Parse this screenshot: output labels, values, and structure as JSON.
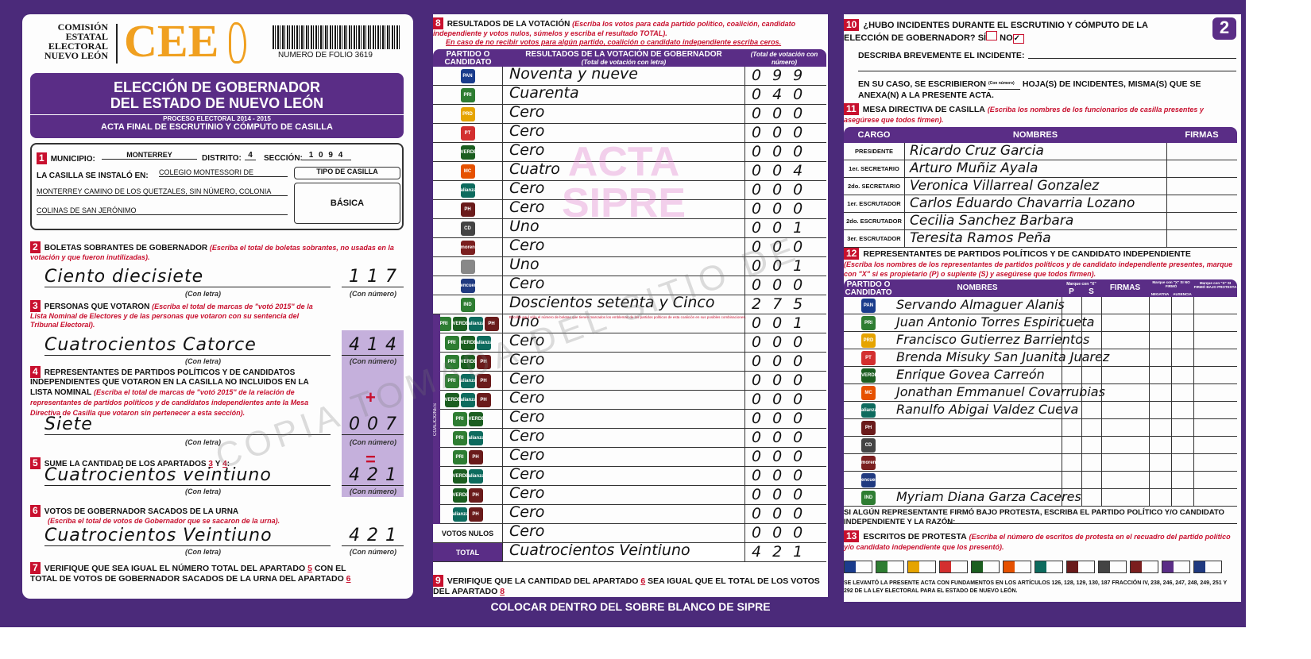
{
  "header": {
    "org": [
      "COMISIÓN",
      "ESTATAL",
      "ELECTORAL",
      "NUEVO LEÓN"
    ],
    "logo_text": "CEE",
    "folio": "NUMERO DE FOLIO 3619",
    "page_number": "2",
    "title_line1": "ELECCIÓN DE GOBERNADOR",
    "title_line2": "DEL ESTADO DE NUEVO LEÓN",
    "process": "PROCESO ELECTORAL 2014 - 2015",
    "subtitle": "ACTA FINAL DE ESCRUTINIO Y CÓMPUTO DE CASILLA"
  },
  "s1": {
    "num": "1",
    "municipio_label": "MUNICIPIO:",
    "municipio": "MONTERREY",
    "distrito_label": "DISTRITO:",
    "distrito": "4",
    "seccion_label": "SECCIÓN:",
    "seccion": "1 0 9 4",
    "installed_label": "LA CASILLA SE INSTALÓ EN:",
    "address1": "COLEGIO MONTESSORI DE",
    "address2": "MONTERREY CAMINO DE LOS QUETZALES, SIN NÚMERO, COLONIA",
    "address3": "COLINAS DE SAN JERÓNIMO",
    "tipo_label": "TIPO DE CASILLA",
    "tipo": "BÁSICA"
  },
  "labels": {
    "con_letra": "(Con letra)",
    "con_numero": "(Con número)",
    "plus": "+",
    "equals": "="
  },
  "s2": {
    "num": "2",
    "title": "BOLETAS SOBRANTES DE GOBERNADOR",
    "note": "(Escriba el total de boletas sobrantes, no usadas en la votación y que fueron inutilizadas).",
    "letra": "Ciento diecisiete",
    "numero": "117"
  },
  "s3": {
    "num": "3",
    "title": "PERSONAS QUE VOTARON",
    "note": "(Escriba el total de marcas de \"votó 2015\" de la Lista Nominal de Electores y de las personas que votaron con su sentencia del Tribunal Electoral).",
    "letra": "Cuatrocientos Catorce",
    "numero": "414"
  },
  "s4": {
    "num": "4",
    "title": "REPRESENTANTES DE PARTIDOS POLÍTICOS Y DE CANDIDATOS INDEPENDIENTES QUE VOTARON EN LA CASILLA NO INCLUIDOS EN LA LISTA NOMINAL",
    "note": "(Escriba el total de marcas de \"votó 2015\" de la relación de representantes de partidos políticos y de candidatos independientes ante la Mesa Directiva de Casilla que votaron sin pertenecer a esta sección).",
    "letra": "Siete",
    "numero": "007"
  },
  "s5": {
    "num": "5",
    "title": "SUME LA CANTIDAD DE LOS APARTADOS",
    "a": "3",
    "y": "Y",
    "b": "4",
    "letra": "Cuatrocientos veintiuno",
    "numero": "421"
  },
  "s6": {
    "num": "6",
    "title": "VOTOS DE GOBERNADOR SACADOS DE LA URNA",
    "note": "(Escriba el total de votos de Gobernador que se sacaron de la urna).",
    "letra": "Cuatrocientos Veintiuno",
    "numero": "421"
  },
  "s7": {
    "num": "7",
    "text1": "VERIFIQUE QUE SEA IGUAL EL NÚMERO TOTAL DEL APARTADO",
    "a": "5",
    "text2": "CON EL TOTAL DE VOTOS DE GOBERNADOR SACADOS DE LA URNA DEL APARTADO",
    "b": "6"
  },
  "s8": {
    "num": "8",
    "title": "RESULTADOS DE LA VOTACIÓN",
    "note1": "(Escriba los votos para cada partido político, coalición, candidato independiente y votos nulos, súmelos y escriba el resultado TOTAL).",
    "note2": "En caso de no recibir votos para algún partido, coalición o candidato independiente escriba ceros.",
    "col_party": "PARTIDO O CANDIDATO",
    "col_result": "RESULTADOS DE LA VOTACIÓN DE GOBERNADOR",
    "col_result_sub": "(Total de votación con letra)",
    "col_num": "(Total de votación con número)",
    "coalition_note": "Escriba aquí sólo el número de boletas que tienen marcados los emblemas de los partidos políticos de esta coalición en sus posibles combinaciones.",
    "coalitions_label": "COALICIONES",
    "watermark": "ACTA SIPRE",
    "rows": [
      {
        "party": "PAN",
        "color": "#1a3c8c",
        "letra": "Noventa y nueve",
        "numero": "099"
      },
      {
        "party": "PRI",
        "color": "#2e7d32",
        "letra": "Cuarenta",
        "numero": "040"
      },
      {
        "party": "PRD",
        "color": "#e6a400",
        "letra": "Cero",
        "numero": "000"
      },
      {
        "party": "PT",
        "color": "#d32f2f",
        "letra": "Cero",
        "numero": "000"
      },
      {
        "party": "VERDE",
        "color": "#1b5e20",
        "letra": "Cero",
        "numero": "000"
      },
      {
        "party": "MC",
        "color": "#e65100",
        "letra": "Cuatro",
        "numero": "004"
      },
      {
        "party": "alianza",
        "color": "#0d6b5e",
        "letra": "Cero",
        "numero": "000"
      },
      {
        "party": "PH",
        "color": "#6a1b1b",
        "letra": "Cero",
        "numero": "000"
      },
      {
        "party": "CD",
        "color": "#444",
        "letra": "Uno",
        "numero": "001"
      },
      {
        "party": "morena",
        "color": "#7b1f1f",
        "letra": "Cero",
        "numero": "000"
      },
      {
        "party": "",
        "color": "#888",
        "letra": "Uno",
        "numero": "001"
      },
      {
        "party": "encuentro",
        "color": "#203a80",
        "letra": "Cero",
        "numero": "000"
      },
      {
        "party": "IND",
        "color": "#2e7d32",
        "letra": "Doscientos setenta y Cinco",
        "numero": "275"
      }
    ],
    "coalition_rows": [
      {
        "parties": [
          "PRI",
          "VERDE",
          "alianza",
          "PH"
        ],
        "letra": "Uno",
        "numero": "001"
      },
      {
        "parties": [
          "PRI",
          "VERDE",
          "alianza"
        ],
        "letra": "Cero",
        "numero": "000"
      },
      {
        "parties": [
          "PRI",
          "VERDE",
          "PH"
        ],
        "letra": "Cero",
        "numero": "000"
      },
      {
        "parties": [
          "PRI",
          "alianza",
          "PH"
        ],
        "letra": "Cero",
        "numero": "000"
      },
      {
        "parties": [
          "VERDE",
          "alianza",
          "PH"
        ],
        "letra": "Cero",
        "numero": "000"
      },
      {
        "parties": [
          "PRI",
          "VERDE"
        ],
        "letra": "Cero",
        "numero": "000"
      },
      {
        "parties": [
          "PRI",
          "alianza"
        ],
        "letra": "Cero",
        "numero": "000"
      },
      {
        "parties": [
          "PRI",
          "PH"
        ],
        "letra": "Cero",
        "numero": "000"
      },
      {
        "parties": [
          "VERDE",
          "alianza"
        ],
        "letra": "Cero",
        "numero": "000"
      },
      {
        "parties": [
          "VERDE",
          "PH"
        ],
        "letra": "Cero",
        "numero": "000"
      },
      {
        "parties": [
          "alianza",
          "PH"
        ],
        "letra": "Cero",
        "numero": "000"
      }
    ],
    "nulos_label": "VOTOS NULOS",
    "nulos_letra": "Cero",
    "nulos_numero": "000",
    "total_label": "TOTAL",
    "total_letra": "Cuatrocientos Veintiuno",
    "total_numero": "421"
  },
  "s9": {
    "num": "9",
    "text1": "VERIFIQUE QUE LA CANTIDAD DEL APARTADO",
    "a": "6",
    "text2": "SEA IGUAL QUE EL TOTAL DE LOS VOTOS DEL APARTADO",
    "b": "8"
  },
  "footer_banner": "COLOCAR DENTRO DEL SOBRE BLANCO DE SIPRE",
  "s10": {
    "num": "10",
    "question": "¿HUBO INCIDENTES DURANTE EL ESCRUTINIO Y CÓMPUTO DE LA ELECCIÓN DE GOBERNADOR?",
    "si": "SÍ",
    "no": "NO",
    "no_checked": true,
    "describe": "DESCRIBA BREVEMENTE EL INCIDENTE:",
    "sheets1": "EN SU CASO, SE ESCRIBIERON",
    "sheets_sub": "(Con número)",
    "sheets2": "HOJA(S) DE INCIDENTES, MISMA(S) QUE SE ANEXA(N) A LA PRESENTE ACTA."
  },
  "s11": {
    "num": "11",
    "title": "MESA DIRECTIVA DE CASILLA",
    "note": "(Escriba los nombres de los funcionarios de casilla presentes y asegúrese que todos firmen).",
    "col_cargo": "CARGO",
    "col_nombres": "NOMBRES",
    "col_firmas": "FIRMAS",
    "rows": [
      {
        "cargo": "PRESIDENTE",
        "nombre": "Ricardo Cruz Garcia"
      },
      {
        "cargo": "1er. SECRETARIO",
        "nombre": "Arturo Muñiz Ayala"
      },
      {
        "cargo": "2do. SECRETARIO",
        "nombre": "Veronica Villarreal Gonzalez"
      },
      {
        "cargo": "1er. ESCRUTADOR",
        "nombre": "Carlos Eduardo Chavarria Lozano"
      },
      {
        "cargo": "2do. ESCRUTADOR",
        "nombre": "Cecilia Sanchez Barbara"
      },
      {
        "cargo": "3er. ESCRUTADOR",
        "nombre": "Teresita Ramos Peña"
      }
    ]
  },
  "s12": {
    "num": "12",
    "title": "REPRESENTANTES DE PARTIDOS POLÍTICOS Y DE CANDIDATO INDEPENDIENTE",
    "note": "(Escriba los nombres de los representantes de partidos políticos y de candidato independiente presentes, marque con \"X\" si es propietario (P) o suplente (S) y asegúrese que todos firmen).",
    "col_party": "PARTIDO O CANDIDATO",
    "col_nombres": "NOMBRES",
    "col_marque": "Marque con \"X\"",
    "col_p": "P",
    "col_s": "S",
    "col_firmas": "FIRMAS",
    "col_nofirmo": "Marque con \"X\" SI NO FIRMÓ",
    "col_negativa": "NEGATIVA",
    "col_ausencia": "AUSENCIA",
    "col_protesta": "Marque con \"X\" SI FIRMÓ BAJO PROTESTA",
    "rows": [
      {
        "party": "PAN",
        "color": "#1a3c8c",
        "nombre": "Servando Almaguer Alanis"
      },
      {
        "party": "PRI",
        "color": "#2e7d32",
        "nombre": "Juan Antonio Torres Espiricueta"
      },
      {
        "party": "PRD",
        "color": "#e6a400",
        "nombre": "Francisco Gutierrez Barrientos"
      },
      {
        "party": "PT",
        "color": "#d32f2f",
        "nombre": "Brenda Misuky San Juanita Juarez"
      },
      {
        "party": "VERDE",
        "color": "#1b5e20",
        "nombre": "Enrique Govea Carreón"
      },
      {
        "party": "MC",
        "color": "#e65100",
        "nombre": "Jonathan Emmanuel Covarrubias"
      },
      {
        "party": "alianza",
        "color": "#0d6b5e",
        "nombre": "Ranulfo Abigai Valdez Cueva"
      },
      {
        "party": "PH",
        "color": "#6a1b1b",
        "nombre": ""
      },
      {
        "party": "CD",
        "color": "#444",
        "nombre": ""
      },
      {
        "party": "morena",
        "color": "#7b1f1f",
        "nombre": ""
      },
      {
        "party": "encuentro",
        "color": "#203a80",
        "nombre": ""
      },
      {
        "party": "IND",
        "color": "#2e7d32",
        "nombre": "Myriam Diana Garza Caceres"
      }
    ],
    "protest_q": "SI ALGÚN REPRESENTANTE FIRMÓ BAJO PROTESTA, ESCRIBA EL PARTIDO POLÍTICO Y/O CANDIDATO INDEPENDIENTE Y LA RAZÓN:"
  },
  "s13": {
    "num": "13",
    "title": "ESCRITOS DE PROTESTA",
    "note": "(Escriba el número de escritos de protesta en el recuadro del partido político y/o candidato independiente que los presentó).",
    "boxes": [
      {
        "color": "#1a3c8c"
      },
      {
        "color": "#2e7d32"
      },
      {
        "color": "#e6a400"
      },
      {
        "color": "#d32f2f"
      },
      {
        "color": "#1b5e20"
      },
      {
        "color": "#e65100"
      },
      {
        "color": "#0d6b5e"
      },
      {
        "color": "#6a1b1b"
      },
      {
        "color": "#444"
      },
      {
        "color": "#7b1f1f"
      },
      {
        "color": "#5a2d86"
      },
      {
        "color": "#203a80"
      }
    ]
  },
  "legal": "SE LEVANTÓ LA PRESENTE ACTA CON FUNDAMENTOS EN LOS ARTÍCULOS 126, 128, 129, 130, 187 FRACCIÓN IV, 238, 246, 247, 248, 249, 251 Y 292 DE LA LEY ELECTORAL PARA EL ESTADO DE NUEVO LEÓN.",
  "watermark": "COPIA TOMADA DEL SITIO DE"
}
